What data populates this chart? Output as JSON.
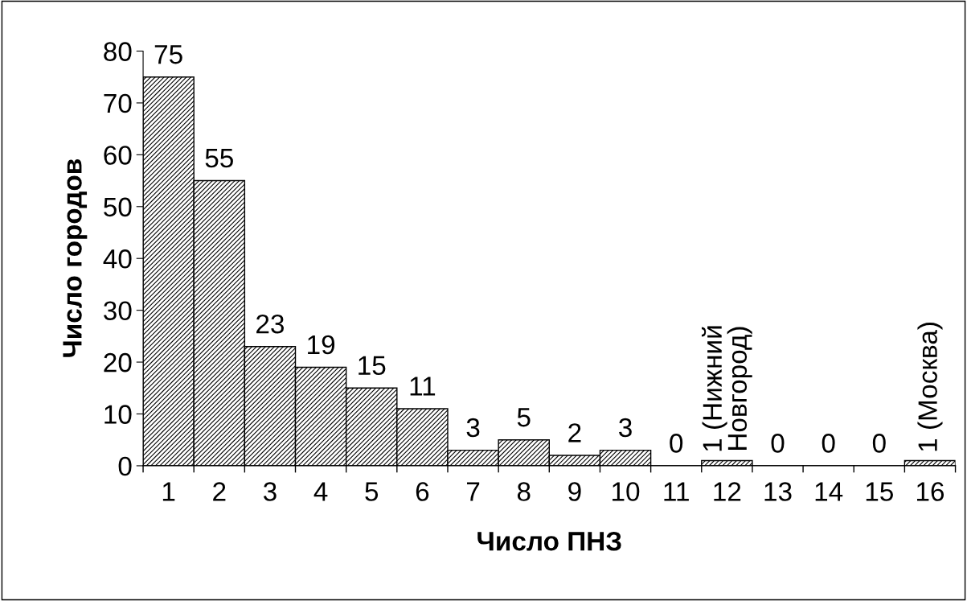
{
  "chart_data": {
    "type": "bar",
    "xlabel": "Число ПНЗ",
    "ylabel": "Число городов",
    "categories": [
      "1",
      "2",
      "3",
      "4",
      "5",
      "6",
      "7",
      "8",
      "9",
      "10",
      "11",
      "12",
      "13",
      "14",
      "15",
      "16"
    ],
    "values": [
      75,
      55,
      23,
      19,
      15,
      11,
      3,
      5,
      2,
      3,
      0,
      1,
      0,
      0,
      0,
      1
    ],
    "value_labels": [
      "75",
      "55",
      "23",
      "19",
      "15",
      "11",
      "3",
      "5",
      "2",
      "3",
      "0",
      "1 (Нижний\nНовгород)",
      "0",
      "0",
      "0",
      "1 (Москва)"
    ],
    "color": "#000000",
    "ylim": [
      0,
      80
    ],
    "yticks": [
      0,
      10,
      20,
      30,
      40,
      50,
      60,
      70,
      80
    ],
    "grid": false,
    "legend": false
  }
}
